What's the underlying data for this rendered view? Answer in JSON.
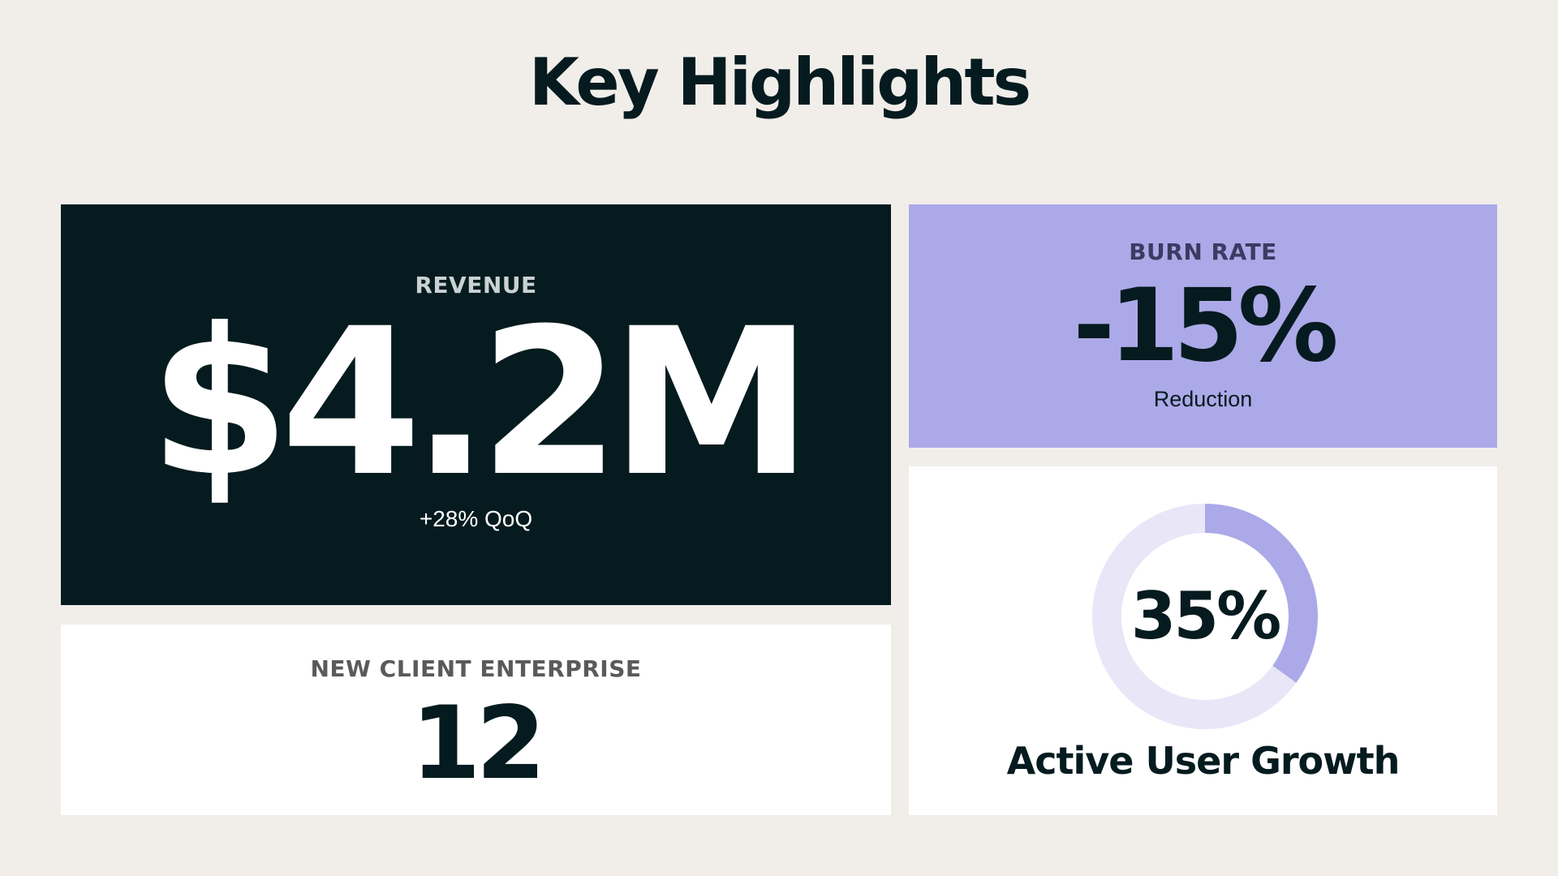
{
  "slide": {
    "title": "Key Highlights"
  },
  "revenue": {
    "label": "REVENUE",
    "value": "$4.2M",
    "change": "+28% QoQ"
  },
  "burn_rate": {
    "label": "BURN RATE",
    "value": "-15%",
    "caption": "Reduction"
  },
  "new_clients": {
    "label": "NEW CLIENT ENTERPRISE",
    "value": "12"
  },
  "active_users": {
    "value": "35%",
    "percent": 35,
    "label": "Active User Growth"
  },
  "colors": {
    "background": "#f1eeea",
    "dark": "#051b1f",
    "accent": "#aca9e8",
    "accent_light": "#e8e6f7",
    "white": "#ffffff"
  }
}
